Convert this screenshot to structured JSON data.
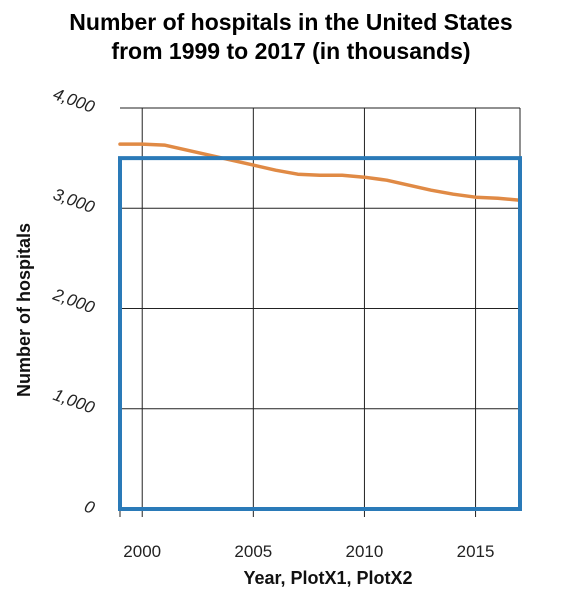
{
  "chart_data": {
    "type": "line",
    "title_line1": "Number of hospitals in the United States",
    "title_line2": "from 1999 to 2017 (in thousands)",
    "xlabel": "Year, PlotX1, PlotX2",
    "ylabel": "Number of hospitals",
    "xlim": [
      1999,
      2017
    ],
    "ylim": [
      0,
      4000
    ],
    "x_ticks": [
      2000,
      2005,
      2010,
      2015
    ],
    "y_ticks": [
      0,
      1000,
      2000,
      3000,
      4000
    ],
    "x_tick_labels": [
      "2000",
      "2005",
      "2010",
      "2015"
    ],
    "y_tick_labels": [
      "0",
      "1,000",
      "2,000",
      "3,000",
      "4,000"
    ],
    "grid": true,
    "line_color": "#e08a45",
    "frame_color": "#2a7ab8",
    "highlight_box": {
      "x_range": [
        1999,
        2017
      ],
      "y_range": [
        0,
        3500
      ]
    },
    "series": [
      {
        "x": [
          1999,
          2000,
          2001,
          2002,
          2003,
          2004,
          2005,
          2006,
          2007,
          2008,
          2009,
          2010,
          2011,
          2012,
          2013,
          2014,
          2015,
          2016,
          2017
        ],
        "values": [
          3640,
          3640,
          3630,
          3580,
          3530,
          3480,
          3430,
          3380,
          3340,
          3330,
          3330,
          3310,
          3280,
          3230,
          3180,
          3140,
          3110,
          3100,
          3080
        ]
      }
    ]
  }
}
